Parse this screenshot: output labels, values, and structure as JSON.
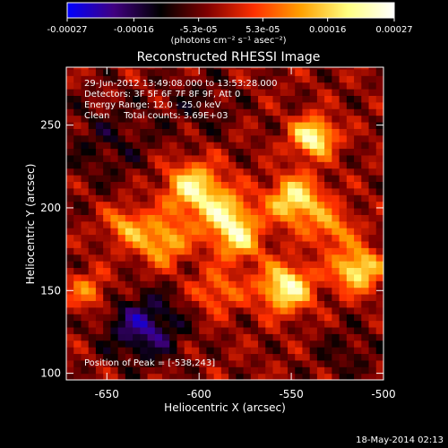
{
  "chart_data": {
    "type": "heatmap",
    "title": "Reconstructed RHESSI Image",
    "xlabel": "Heliocentric X (arcsec)",
    "ylabel": "Heliocentric Y (arcsec)",
    "xlim": [
      -672,
      -500
    ],
    "ylim": [
      96,
      285
    ],
    "x_ticks": [
      "-650",
      "-600",
      "-550",
      "-500"
    ],
    "x_tick_values": [
      -650,
      -600,
      -550,
      -500
    ],
    "y_ticks": [
      "100",
      "150",
      "200",
      "250"
    ],
    "y_tick_values": [
      100,
      150,
      200,
      250
    ],
    "colorbar": {
      "ticks": [
        "-0.00027",
        "-0.00016",
        "-5.3e-05",
        "5.3e-05",
        "0.00016",
        "0.00027"
      ],
      "tick_values": [
        -0.00027,
        -0.00016,
        -5.3e-05,
        5.3e-05,
        0.00016,
        0.00027
      ],
      "range": [
        -0.00027,
        0.00027
      ],
      "unit_label": "(photons cm⁻² s⁻¹ asec⁻²)",
      "colormap": [
        "#0000ff",
        "#400080",
        "#000000",
        "#800000",
        "#ff3000",
        "#ffa000",
        "#ffff80",
        "#ffffff"
      ]
    },
    "annotations": {
      "time": "29-Jun-2012 13:49:08.000 to 13:53:28.000",
      "detectors": "Detectors: 3F 5F 6F 7F 8F 9F, Att 0",
      "energy": "Energy Range: 12.0 - 25.0 keV",
      "clean": "Clean     Total counts: 3.69E+03",
      "peak": "Position of Peak = [-538,243]"
    },
    "peak_position": [
      -538,
      243
    ],
    "sources": [
      {
        "x": -538,
        "y": 243,
        "intensity": 0.00027,
        "sigma": 8
      },
      {
        "x": -548,
        "y": 205,
        "intensity": 0.00024,
        "sigma": 10
      },
      {
        "x": -553,
        "y": 152,
        "intensity": 0.00026,
        "sigma": 10
      },
      {
        "x": -514,
        "y": 163,
        "intensity": 0.00024,
        "sigma": 9
      },
      {
        "x": -603,
        "y": 212,
        "intensity": 0.00023,
        "sigma": 11
      },
      {
        "x": -585,
        "y": 195,
        "intensity": 0.0002,
        "sigma": 10
      },
      {
        "x": -620,
        "y": 180,
        "intensity": 0.00018,
        "sigma": 10
      },
      {
        "x": -640,
        "y": 190,
        "intensity": 0.00014,
        "sigma": 8
      },
      {
        "x": -578,
        "y": 180,
        "intensity": 0.00016,
        "sigma": 9
      },
      {
        "x": -590,
        "y": 150,
        "intensity": 0.00012,
        "sigma": 9
      },
      {
        "x": -660,
        "y": 150,
        "intensity": 0.00012,
        "sigma": 8
      },
      {
        "x": -528,
        "y": 188,
        "intensity": 0.00013,
        "sigma": 9
      },
      {
        "x": -630,
        "y": 128,
        "intensity": -0.00016,
        "sigma": 14
      },
      {
        "x": -650,
        "y": 240,
        "intensity": -6e-05,
        "sigma": 18
      },
      {
        "x": -600,
        "y": 262,
        "intensity": -5e-05,
        "sigma": 14
      },
      {
        "x": -520,
        "y": 112,
        "intensity": -5e-05,
        "sigma": 12
      }
    ]
  },
  "footer": {
    "timestamp": "18-May-2014 02:13"
  }
}
